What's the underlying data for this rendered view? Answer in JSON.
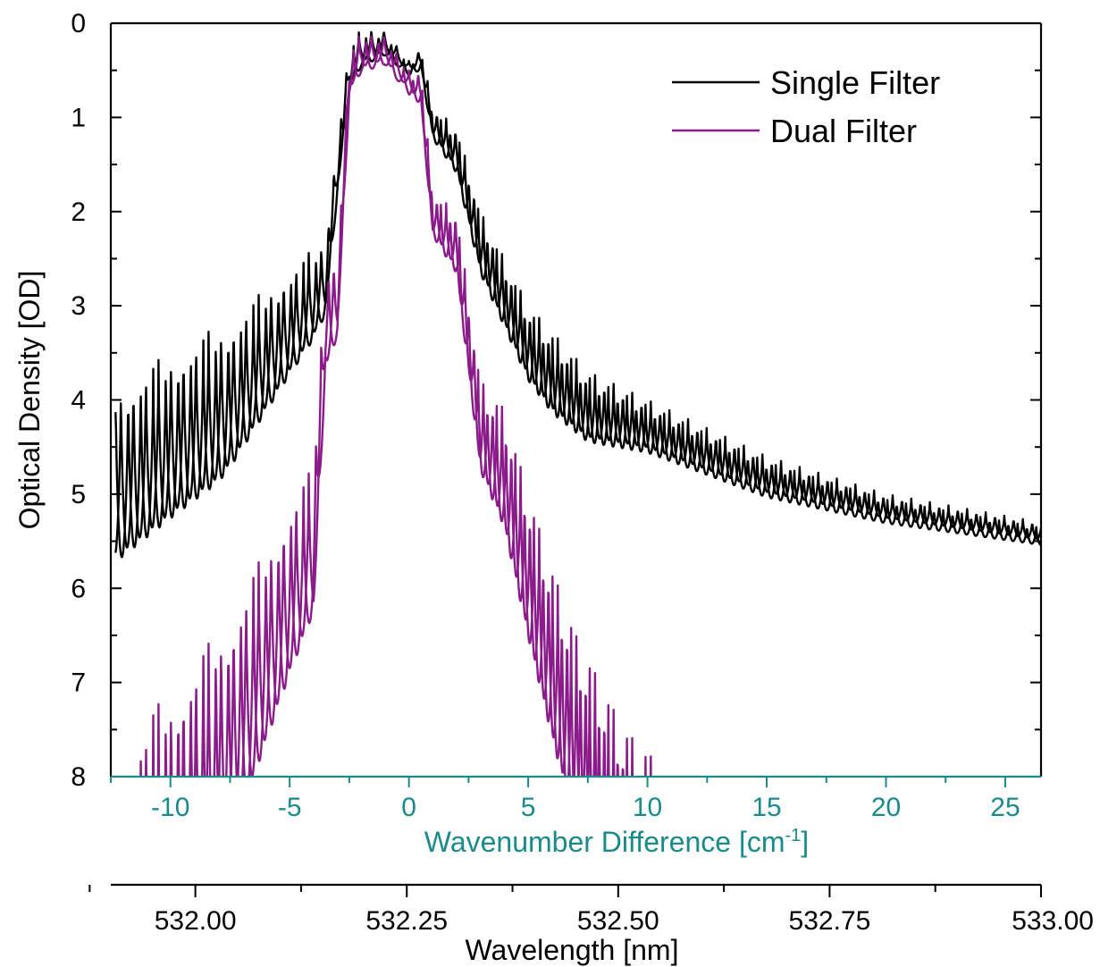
{
  "chart_data": {
    "type": "line",
    "y_axis": {
      "label": "Optical Density [OD]",
      "range": [
        0,
        8
      ],
      "inverted": true,
      "ticks": [
        0,
        1,
        2,
        3,
        4,
        5,
        6,
        7,
        8
      ],
      "tick_labels": [
        "0",
        "1",
        "2",
        "3",
        "4",
        "5",
        "6",
        "7",
        "8"
      ],
      "minor_ticks": [
        0.5,
        1.5,
        2.5,
        3.5,
        4.5,
        5.5,
        6.5,
        7.5
      ]
    },
    "x_axis": {
      "label": "Wavenumber Difference [cm",
      "label_superscript": "-1",
      "label_suffix": "]",
      "range": [
        -12.5,
        26.5
      ],
      "ticks": [
        -10,
        -5,
        0,
        5,
        10,
        15,
        20,
        25
      ],
      "tick_labels": [
        "-10",
        "-5",
        "0",
        "5",
        "10",
        "15",
        "20",
        "25"
      ],
      "color": "#1a8a8a"
    },
    "x2_axis": {
      "label": "Wavelength [nm]",
      "range": [
        531.9,
        533.0
      ],
      "ticks": [
        532.0,
        532.25,
        532.5,
        532.75,
        533.0
      ],
      "tick_labels": [
        "532.00",
        "532.25",
        "532.50",
        "532.75",
        "533.00"
      ],
      "minor_ticks": [
        531.875,
        532.125,
        532.375,
        532.625,
        532.875
      ]
    },
    "legend": {
      "position": "top-right"
    },
    "series": [
      {
        "name": "Single Filter",
        "color": "#000000",
        "paired_traces": 2,
        "envelope": [
          [
            -12.3,
            3.85
          ],
          [
            -10,
            3.5
          ],
          [
            -7.5,
            3.15
          ],
          [
            -5,
            2.6
          ],
          [
            -3.5,
            2.3
          ],
          [
            -3,
            1.2
          ],
          [
            -2.5,
            0.25
          ],
          [
            -2,
            0.06
          ],
          [
            -1,
            0.06
          ],
          [
            0,
            0.4
          ],
          [
            0.5,
            0.25
          ],
          [
            1,
            0.9
          ],
          [
            2,
            1.1
          ],
          [
            3,
            2.0
          ],
          [
            5,
            3.0
          ],
          [
            7.5,
            3.7
          ],
          [
            10,
            4.0
          ],
          [
            15,
            4.6
          ],
          [
            20,
            5.0
          ],
          [
            26.5,
            5.3
          ]
        ],
        "trough_depth": [
          [
            -12,
            1.8
          ],
          [
            -8,
            1.6
          ],
          [
            -4,
            0.9
          ],
          [
            -2.5,
            0.4
          ],
          [
            0,
            0.1
          ],
          [
            3,
            0.6
          ],
          [
            6,
            0.8
          ],
          [
            10,
            0.5
          ],
          [
            20,
            0.25
          ],
          [
            26.5,
            0.18
          ]
        ]
      },
      {
        "name": "Dual Filter",
        "color": "#8b1a8b",
        "paired_traces": 2,
        "envelope": [
          [
            -12.3,
            7.7
          ],
          [
            -10,
            7.1
          ],
          [
            -7.5,
            6.3
          ],
          [
            -5,
            5.1
          ],
          [
            -4,
            4.7
          ],
          [
            -3.5,
            2.5
          ],
          [
            -3,
            2.5
          ],
          [
            -2.5,
            0.3
          ],
          [
            -2,
            0.1
          ],
          [
            -1,
            0.1
          ],
          [
            0,
            0.5
          ],
          [
            0.5,
            0.5
          ],
          [
            1,
            1.8
          ],
          [
            2,
            2.0
          ],
          [
            3,
            3.8
          ],
          [
            4,
            4.1
          ],
          [
            5,
            5.0
          ],
          [
            6,
            5.8
          ],
          [
            7,
            6.5
          ],
          [
            8,
            7.0
          ],
          [
            9,
            7.5
          ],
          [
            10.2,
            7.8
          ],
          [
            10.5,
            8.6
          ]
        ],
        "trough_depth": [
          [
            -12,
            3.0
          ],
          [
            -8,
            2.5
          ],
          [
            -4,
            1.5
          ],
          [
            -2.5,
            0.4
          ],
          [
            0,
            0.2
          ],
          [
            2,
            0.6
          ],
          [
            4,
            1.2
          ],
          [
            7,
            2.0
          ],
          [
            10.5,
            2.0
          ]
        ]
      }
    ]
  }
}
